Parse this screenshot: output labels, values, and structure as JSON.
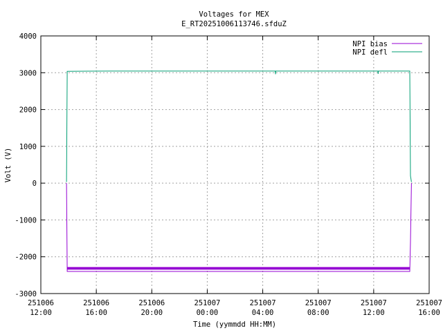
{
  "chart_data": {
    "type": "line",
    "title": "Voltages for MEX",
    "subtitle": "E_RT20251006113746.sfduZ",
    "xlabel": "Time (yymmdd HH:MM)",
    "ylabel": "Volt (V)",
    "x_unit": "hours since 251006 12:00",
    "xlim": [
      0,
      28
    ],
    "ylim": [
      -3000,
      4000
    ],
    "grid": true,
    "legend_position": "top-right",
    "x_ticks": [
      {
        "v": 0,
        "d": "251006",
        "t": "12:00"
      },
      {
        "v": 4,
        "d": "251006",
        "t": "16:00"
      },
      {
        "v": 8,
        "d": "251006",
        "t": "20:00"
      },
      {
        "v": 12,
        "d": "251007",
        "t": "00:00"
      },
      {
        "v": 16,
        "d": "251007",
        "t": "04:00"
      },
      {
        "v": 20,
        "d": "251007",
        "t": "08:00"
      },
      {
        "v": 24,
        "d": "251007",
        "t": "12:00"
      },
      {
        "v": 28,
        "d": "251007",
        "t": "16:00"
      }
    ],
    "y_ticks": [
      -3000,
      -2000,
      -1000,
      0,
      1000,
      2000,
      3000,
      4000
    ],
    "series": [
      {
        "name": "NPI bias",
        "color": "#9400d3",
        "band": {
          "x0": 1.9,
          "x1": 26.6,
          "ylo": -2350,
          "yhi": -2280
        },
        "points": [
          [
            1.85,
            0
          ],
          [
            1.9,
            -2400
          ],
          [
            26.6,
            -2400
          ],
          [
            26.65,
            -1600
          ],
          [
            26.72,
            0
          ]
        ]
      },
      {
        "name": "NPI defl",
        "color": "#009e73",
        "points": [
          [
            1.85,
            30
          ],
          [
            1.9,
            3040
          ],
          [
            5,
            3045
          ],
          [
            10,
            3045
          ],
          [
            16.9,
            3045
          ],
          [
            16.92,
            2960
          ],
          [
            16.94,
            3045
          ],
          [
            22,
            3045
          ],
          [
            24.3,
            3045
          ],
          [
            24.32,
            2970
          ],
          [
            24.34,
            3045
          ],
          [
            26.6,
            3045
          ],
          [
            26.65,
            200
          ],
          [
            26.72,
            30
          ]
        ]
      }
    ]
  }
}
